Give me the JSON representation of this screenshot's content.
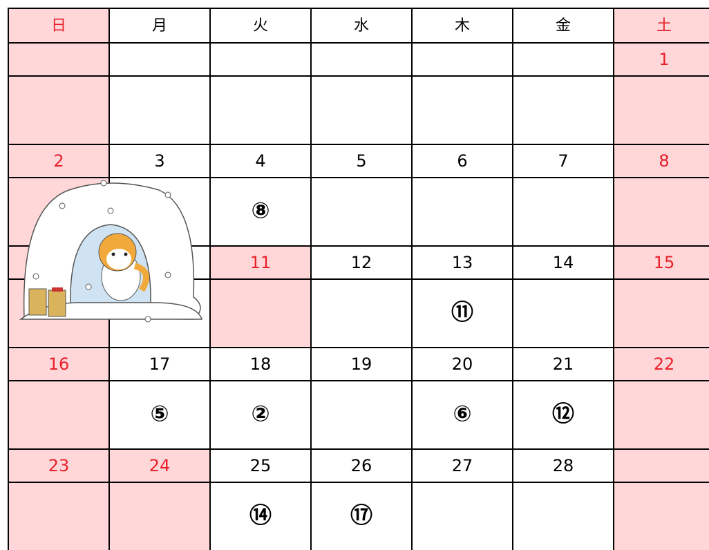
{
  "header": {
    "days": [
      {
        "label": "日",
        "holiday": true
      },
      {
        "label": "月"
      },
      {
        "label": "火"
      },
      {
        "label": "水"
      },
      {
        "label": "木"
      },
      {
        "label": "金"
      },
      {
        "label": "土",
        "holiday": true
      }
    ]
  },
  "weeks": [
    [
      {
        "holiday": true
      },
      {},
      {},
      {},
      {},
      {},
      {
        "date": "1",
        "holiday": true
      }
    ],
    [
      {
        "date": "2",
        "holiday": true
      },
      {
        "date": "3"
      },
      {
        "date": "4",
        "note": "⑧"
      },
      {
        "date": "5"
      },
      {
        "date": "6"
      },
      {
        "date": "7"
      },
      {
        "date": "8",
        "holiday": true
      }
    ],
    [
      {
        "holiday": true
      },
      {},
      {
        "date": "11",
        "holiday": true
      },
      {
        "date": "12"
      },
      {
        "date": "13",
        "note": "⑪"
      },
      {
        "date": "14"
      },
      {
        "date": "15",
        "holiday": true
      }
    ],
    [
      {
        "date": "16",
        "holiday": true
      },
      {
        "date": "17",
        "note": "⑤"
      },
      {
        "date": "18",
        "note": "②"
      },
      {
        "date": "19"
      },
      {
        "date": "20",
        "note": "⑥"
      },
      {
        "date": "21",
        "note": "⑫"
      },
      {
        "date": "22",
        "holiday": true
      }
    ],
    [
      {
        "date": "23",
        "holiday": true
      },
      {
        "date": "24",
        "holiday": true
      },
      {
        "date": "25",
        "note": "⑭"
      },
      {
        "date": "26",
        "note": "⑰"
      },
      {
        "date": "27"
      },
      {
        "date": "28"
      },
      {
        "holiday": true
      }
    ]
  ]
}
